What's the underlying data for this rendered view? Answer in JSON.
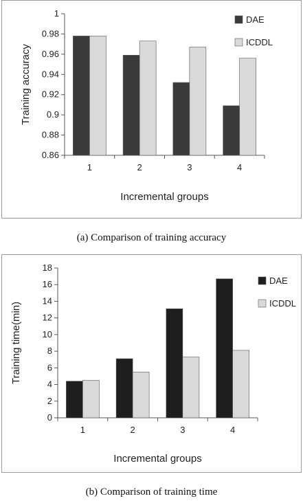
{
  "charts": {
    "a": {
      "caption": "(a) Comparison of training accuracy",
      "chart_data": {
        "type": "bar",
        "categories": [
          "1",
          "2",
          "3",
          "4"
        ],
        "series": [
          {
            "name": "DAE",
            "values": [
              0.978,
              0.959,
              0.932,
              0.909
            ],
            "color": "#3a3a3a"
          },
          {
            "name": "ICDDL",
            "values": [
              0.978,
              0.973,
              0.967,
              0.956
            ],
            "color": "#d9d9d9"
          }
        ],
        "xlabel": "Incremental groups",
        "ylabel": "Training accuracy",
        "ylim": [
          0.86,
          1
        ],
        "yticks": [
          "0.86",
          "0.88",
          "0.9",
          "0.92",
          "0.94",
          "0.96",
          "0.98",
          "1"
        ],
        "legend": "top-right",
        "grid": false
      }
    },
    "b": {
      "caption": "(b) Comparison of training time",
      "chart_data": {
        "type": "bar",
        "categories": [
          "1",
          "2",
          "3",
          "4"
        ],
        "series": [
          {
            "name": "DAE",
            "values": [
              4.4,
              7.1,
              13.1,
              16.7
            ],
            "color": "#1e1e1e"
          },
          {
            "name": "ICDDL",
            "values": [
              4.5,
              5.5,
              7.3,
              8.1
            ],
            "color": "#d9d9d9"
          }
        ],
        "xlabel": "Incremental groups",
        "ylabel": "Training time(min)",
        "ylim": [
          0,
          18
        ],
        "yticks": [
          "0",
          "2",
          "4",
          "6",
          "8",
          "10",
          "12",
          "14",
          "16",
          "18"
        ],
        "legend": "top-right",
        "grid": false
      }
    }
  }
}
